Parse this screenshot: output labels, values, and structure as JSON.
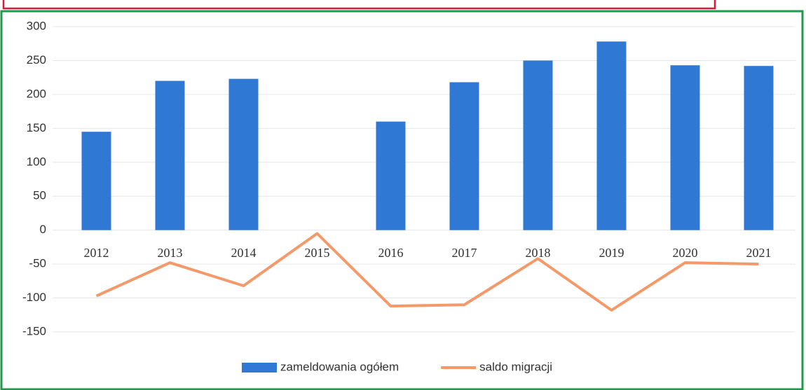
{
  "chart_data": {
    "type": "bar",
    "categories": [
      "2012",
      "2013",
      "2014",
      "2015",
      "2016",
      "2017",
      "2018",
      "2019",
      "2020",
      "2021"
    ],
    "series": [
      {
        "name": "zameldowania ogółem",
        "type": "bar",
        "color": "#2f78d4",
        "values": [
          145,
          220,
          223,
          null,
          160,
          218,
          250,
          278,
          243,
          242
        ]
      },
      {
        "name": "saldo migracji",
        "type": "line",
        "color": "#f4996a",
        "values": [
          -97,
          -48,
          -82,
          -5,
          -112,
          -110,
          -42,
          -118,
          -48,
          -50
        ]
      }
    ],
    "ylim": [
      -150,
      300
    ],
    "yticks": [
      -150,
      -100,
      -50,
      0,
      50,
      100,
      150,
      200,
      250,
      300
    ],
    "grid": true,
    "legend": "bottom"
  }
}
